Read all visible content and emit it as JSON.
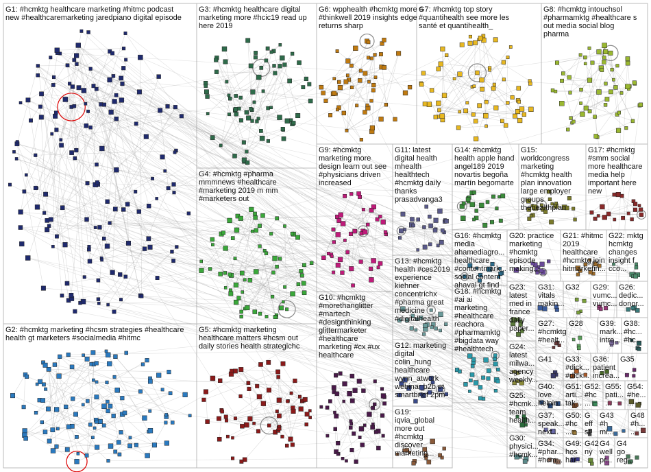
{
  "groups": [
    {
      "lines": [
        "G1: #hcmktg healthcare marketing #hitmc podcast",
        "new #healthcaremarketing jaredpiano digital episode"
      ],
      "color": "#1f2a6e"
    },
    {
      "lines": [
        "G2: #hcmktg marketing #hcsm strategies #healthcare",
        "health gt marketers #socialmedia #hitmc"
      ],
      "color": "#2a7ac0"
    },
    {
      "lines": [
        "G3: #hcmktg healthcare digital",
        "marketing more #hcic19 read up",
        "here 2019"
      ],
      "color": "#2e6b4a"
    },
    {
      "lines": [
        "G4: #hcmktg #pharma",
        "mmmnews #healthcare",
        "#marketing 2019 m mm",
        "#marketers out"
      ],
      "color": "#3aa83a"
    },
    {
      "lines": [
        "G5: #hcmktg marketing",
        "healthcare matters #hcsm out",
        "daily stories health strategichc"
      ],
      "color": "#8b1a1a"
    },
    {
      "lines": [
        "G6: wpphealth #hcmktg more s",
        "#thinkwell 2019 insights edge",
        "returns sharp"
      ],
      "color": "#c07a10"
    },
    {
      "lines": [
        "G7: #hcmktg top story",
        "#quantihealth see more les",
        "santé et quantihealth_"
      ],
      "color": "#e8b820"
    },
    {
      "lines": [
        "G8: #hcmktg intouchsol",
        "#pharmamktg #healthcare s",
        "out media social blog",
        "pharma"
      ],
      "color": "#9ab830"
    },
    {
      "lines": [
        "G9: #hcmktg",
        "marketing more",
        "design learn out see",
        "#physicians driven",
        "increased"
      ],
      "color": "#c01a7a"
    },
    {
      "lines": [
        "G11: latest",
        "digital health",
        "mhealth",
        "healthtech",
        "#hcmktg daily",
        "thanks",
        "prasadvanga3"
      ],
      "color": "#5a5a8a"
    },
    {
      "lines": [
        "G14: #hcmktg",
        "health apple hand",
        "angel189 2019",
        "novartis begoña",
        "martín begomarte"
      ],
      "color": "#3a8a3a"
    },
    {
      "lines": [
        "G15:",
        "worldcongress",
        "marketing",
        "#hcmktg health",
        "plan innovation",
        "large employer",
        "groups",
        "thehealthplan"
      ],
      "color": "#7a7a2a"
    },
    {
      "lines": [
        "G17: #hcmktg",
        "#smm social",
        "more healthcare",
        "media help",
        "important here",
        "new"
      ],
      "color": "#8a2a2a"
    },
    {
      "lines": [
        "G16: #hcmktg",
        "media",
        "ahamediagro...",
        "healthcare",
        "#contentmark...",
        "social content",
        "ahaval gt find"
      ],
      "color": "#2a6a8a"
    },
    {
      "lines": [
        "G20: practice",
        "marketing",
        "#hcmktg",
        "episode",
        "making..."
      ],
      "color": "#6a4a9a"
    },
    {
      "lines": [
        "G21: #hitmc",
        "2019",
        "healthcare",
        "#hcmktg join",
        "hitmarketin..."
      ],
      "color": "#9a6a2a"
    },
    {
      "lines": [
        "G22: mktg",
        "hcmktg",
        "changes",
        "insight f",
        "cco..."
      ],
      "color": "#4a8a6a"
    },
    {
      "lines": [
        "G13: #hcmktg",
        "health #ces2019",
        "experience",
        "kiehner",
        "concentrichx",
        "#pharma great",
        "medicine",
        "#digitalhealth"
      ],
      "color": "#6a9a9a"
    },
    {
      "lines": [
        "G10: #hcmktg",
        "#morethanglitter",
        "#martech",
        "#designthinking",
        "glittermarketer",
        "#healthcare",
        "marketing #cx #ux",
        "healthcare"
      ],
      "color": "#4a1a4a"
    },
    {
      "lines": [
        "G12: marketing",
        "digital",
        "colin_hung",
        "healthcare",
        "wynn_atwork",
        "webinar b2b et",
        "smartbrief 2pm"
      ],
      "color": "#3a4a8a"
    },
    {
      "lines": [
        "G18: #hcmktg",
        "#ai ai",
        "marketing",
        "#healthcare",
        "reachora",
        "#pharmamktg",
        "#bigdata way",
        "#healthtech"
      ],
      "color": "#2a9aaa"
    },
    {
      "lines": [
        "G19:",
        "iqvia_global",
        "more out",
        "#hcmktg",
        "discover",
        "marketing..."
      ],
      "color": "#8a5a3a"
    },
    {
      "lines": [
        "G23:",
        "latest",
        "med in",
        "france",
        "daily",
        "paper..."
      ],
      "color": "#5a7a3a"
    },
    {
      "lines": [
        "G31:",
        "vitals",
        "makin..."
      ],
      "color": "#3a5a9a"
    },
    {
      "lines": [
        "G32"
      ],
      "color": "#7aa03a"
    },
    {
      "lines": [
        "G29:",
        "vumc...",
        "vumc..."
      ],
      "color": "#9a3a7a"
    },
    {
      "lines": [
        "G26:",
        "dedic...",
        "donor..."
      ],
      "color": "#3a7a7a"
    },
    {
      "lines": [
        "G27:",
        "#hcmktg",
        "#healt..."
      ],
      "color": "#6a3a3a"
    },
    {
      "lines": [
        "G28"
      ],
      "color": "#5aa05a"
    },
    {
      "lines": [
        "G39:",
        "mark...",
        "intre..."
      ],
      "color": "#7a6a9a"
    },
    {
      "lines": [
        "G38:",
        "#hc...",
        "#hc..."
      ],
      "color": "#2a5a5a"
    },
    {
      "lines": [
        "G24:",
        "latest",
        "milwa...",
        "agency",
        "weekly..."
      ],
      "color": "#8a8a3a"
    },
    {
      "lines": [
        "G41"
      ],
      "color": "#3a3a6a"
    },
    {
      "lines": [
        "G33:",
        "#dick...",
        "#dick..."
      ],
      "color": "#aa5a2a"
    },
    {
      "lines": [
        "G36:",
        "patient",
        "increa..."
      ],
      "color": "#4a6a2a"
    },
    {
      "lines": [
        "G35"
      ],
      "color": "#6a2a6a"
    },
    {
      "lines": [
        "G40:",
        "love",
        "helpin..."
      ],
      "color": "#2a4a7a"
    },
    {
      "lines": [
        "G51:",
        "arti...",
        "tak..."
      ],
      "color": "#7a4a2a"
    },
    {
      "lines": [
        "G52:",
        "#hc",
        "..."
      ],
      "color": "#3a8a5a"
    },
    {
      "lines": [
        "G55:",
        "pati...",
        "..."
      ],
      "color": "#8a3a5a"
    },
    {
      "lines": [
        "G54:",
        "#he...",
        "..."
      ],
      "color": "#5a5a2a"
    },
    {
      "lines": [
        "G25:",
        "#hcmk...",
        "team",
        "health..."
      ],
      "color": "#2a6a3a"
    },
    {
      "lines": [
        "G37:",
        "speak...",
        "next..."
      ],
      "color": "#6a6aaa"
    },
    {
      "lines": [
        "G50:",
        "#hc",
        "..."
      ],
      "color": "#9a7a3a"
    },
    {
      "lines": [
        "G",
        "eff",
        "st"
      ],
      "color": "#4a4a4a"
    },
    {
      "lines": [
        "G43",
        "#h",
        "mi..."
      ],
      "color": "#3a6a9a"
    },
    {
      "lines": [
        "G48",
        "#h...",
        "..."
      ],
      "color": "#7a3a3a"
    },
    {
      "lines": [
        "G30:",
        "physici...",
        "#hcmk..."
      ],
      "color": "#5a8a8a"
    },
    {
      "lines": [
        "G34:",
        "#phar...",
        "#hcm..."
      ],
      "color": "#8a6a5a"
    },
    {
      "lines": [
        "G49:",
        "hos",
        "har..."
      ],
      "color": "#3a3a8a"
    },
    {
      "lines": [
        "G42",
        "ny"
      ],
      "color": "#6a8a3a"
    },
    {
      "lines": [
        "G4",
        "well",
        "pr..."
      ],
      "color": "#8a4a8a"
    },
    {
      "lines": [
        "G4",
        "go",
        "reg..."
      ],
      "color": "#4a7a5a"
    }
  ]
}
